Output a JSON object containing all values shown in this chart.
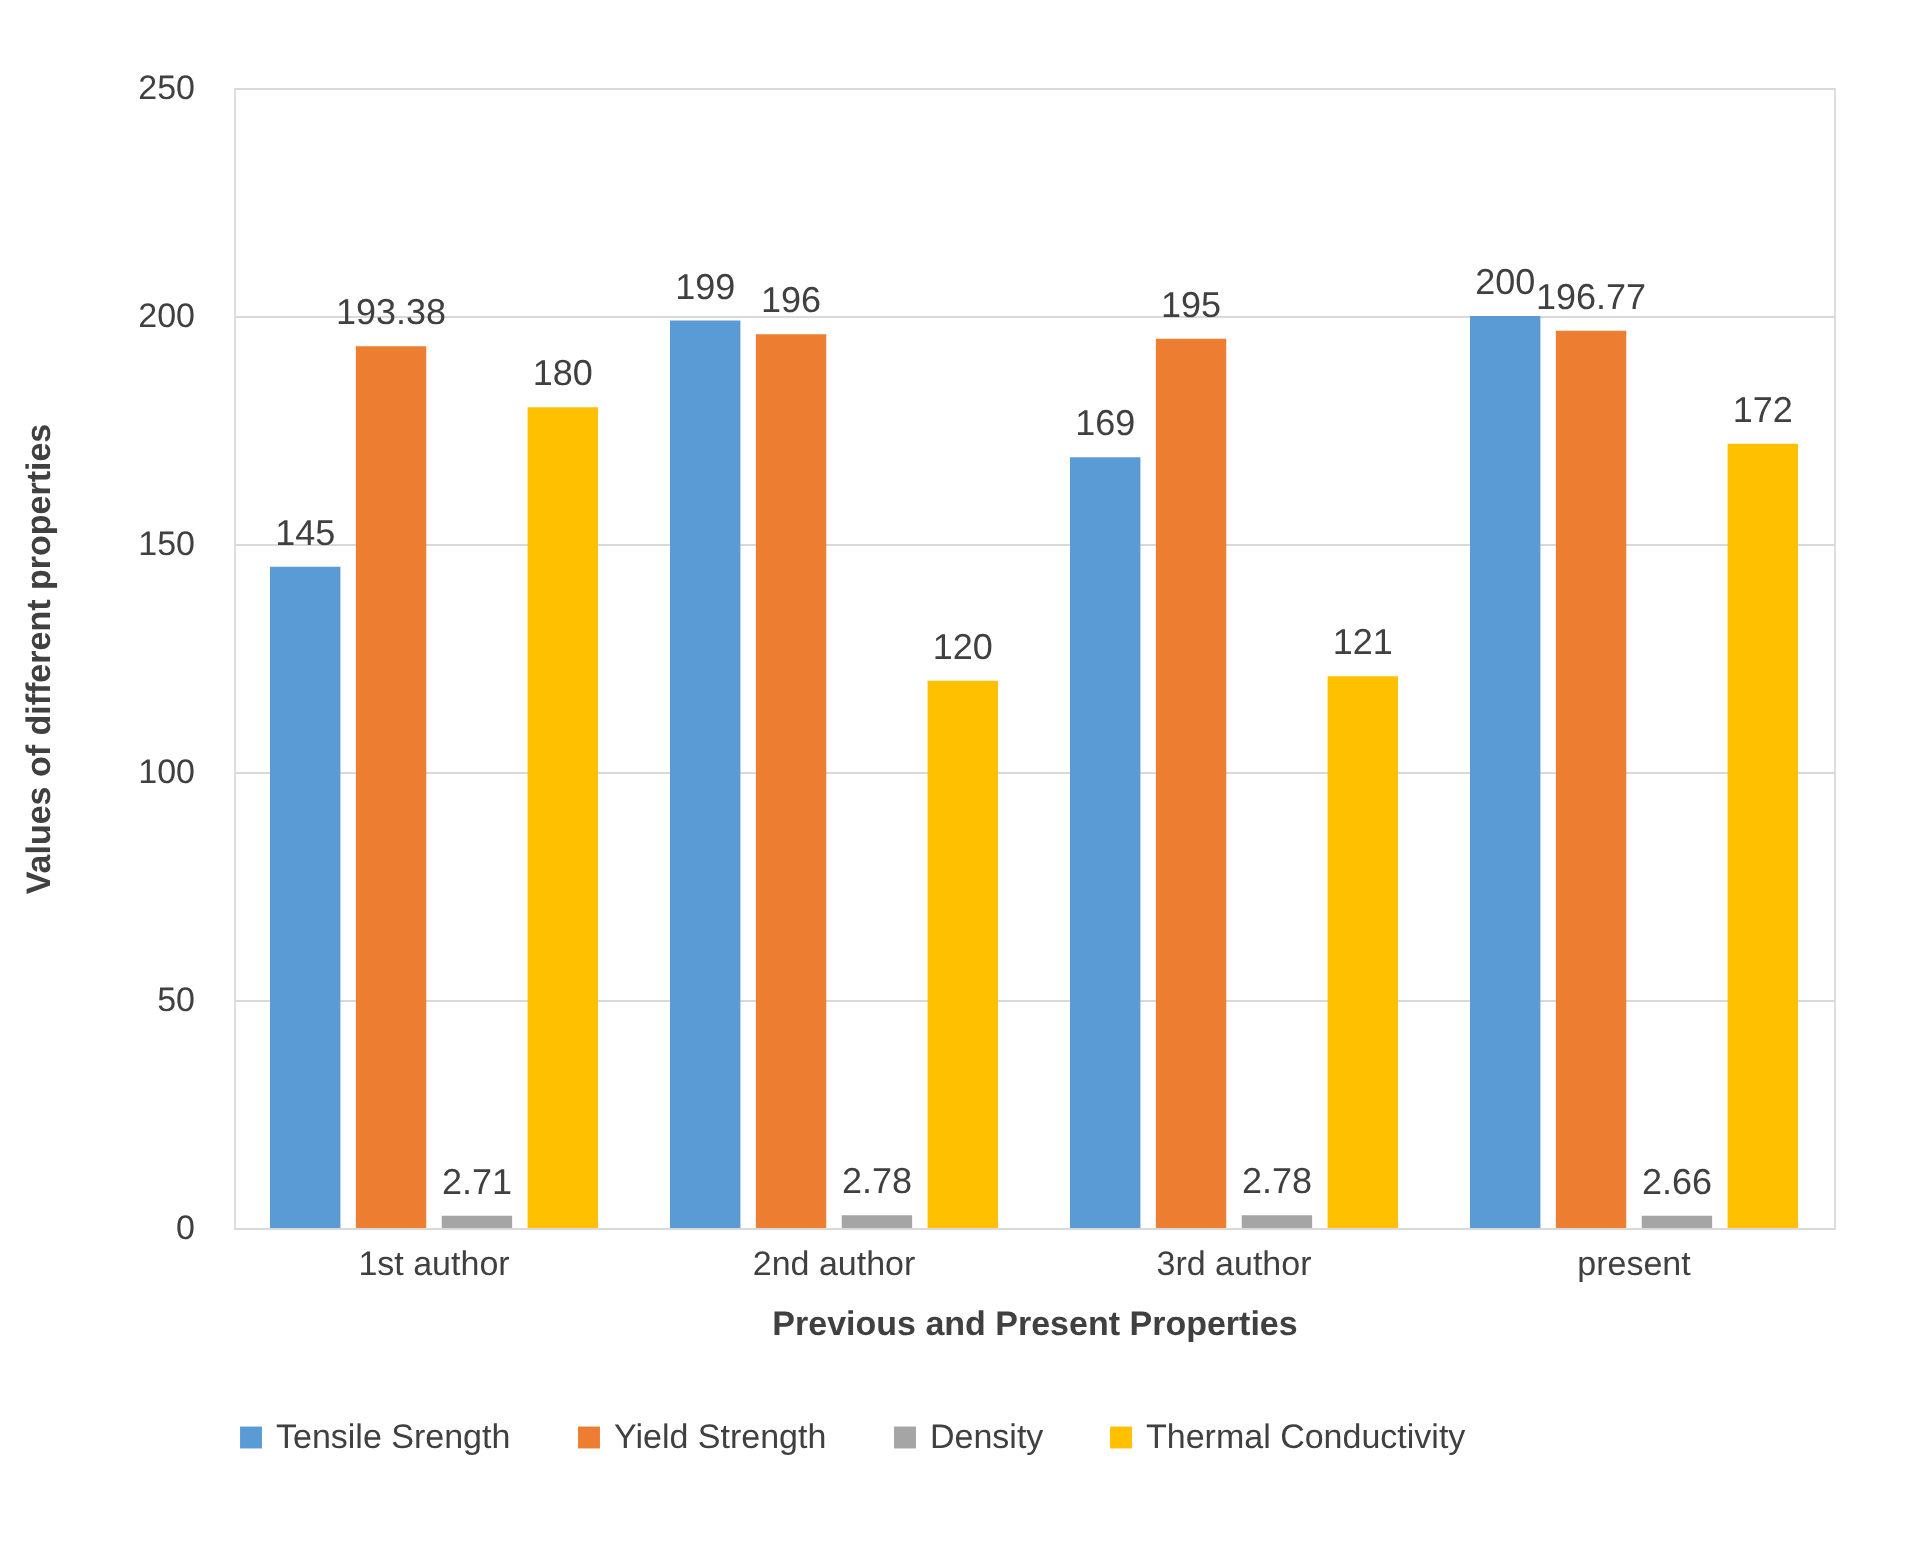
{
  "chart_data": {
    "type": "bar",
    "xlabel": "Previous and Present Properties",
    "ylabel": "Values of different properties",
    "categories": [
      "1st author",
      "2nd author",
      "3rd author",
      "present"
    ],
    "series": [
      {
        "name": "Tensile Srength",
        "color": "#5b9bd5",
        "values": [
          145,
          199,
          169,
          200
        ]
      },
      {
        "name": "Yield Strength",
        "color": "#ed7d31",
        "values": [
          193.38,
          196,
          195,
          196.77
        ]
      },
      {
        "name": "Density",
        "color": "#a5a5a5",
        "values": [
          2.71,
          2.78,
          2.78,
          2.66
        ]
      },
      {
        "name": "Thermal Conductivity",
        "color": "#ffc000",
        "values": [
          180,
          120,
          121,
          172
        ]
      }
    ],
    "ylim": [
      0,
      250
    ],
    "yticks": [
      0,
      50,
      100,
      150,
      200,
      250
    ],
    "grid": "y",
    "legend": "bottom",
    "data_labels": true
  }
}
